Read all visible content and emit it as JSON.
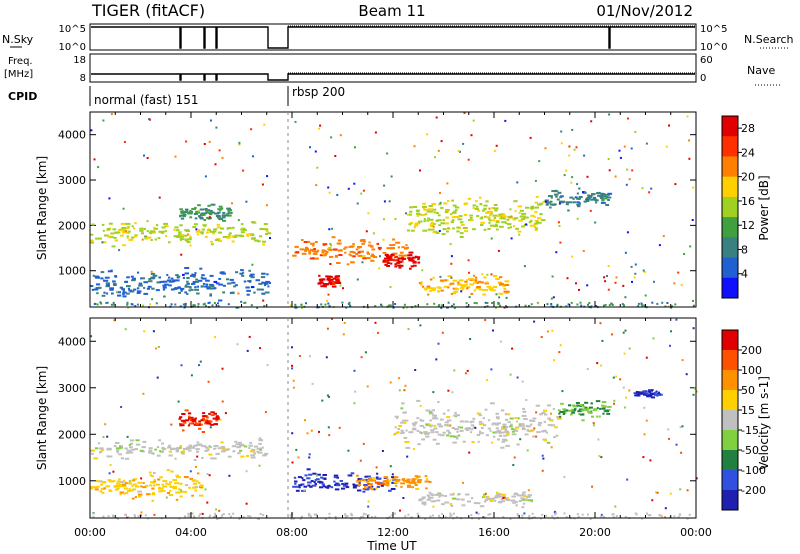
{
  "header": {
    "station": "TIGER (fitACF)",
    "beam": "Beam 11",
    "date": "01/Nov/2012"
  },
  "left_labels": {
    "nsky": "N.Sky",
    "freq_line1": "Freq.",
    "freq_line2": "[MHz]",
    "cpid": "CPID"
  },
  "right_labels": {
    "nsearch": "N.Search",
    "nave": "Nave"
  },
  "nsky_ticks": [
    "10^5",
    "10^0"
  ],
  "nsearch_ticks": [
    "10^5",
    "10^0"
  ],
  "freq_ticks": [
    "18",
    "8"
  ],
  "nave_ticks": [
    "60",
    "0"
  ],
  "cpid_modes": [
    "normal (fast) 151",
    "rbsp 200"
  ],
  "colors": {
    "power": [
      "#1010ff",
      "#2060d0",
      "#3a8080",
      "#40a040",
      "#a0d020",
      "#ffd000",
      "#ff8000",
      "#ff3000",
      "#e00000"
    ],
    "velocity": [
      "#2020b0",
      "#3050e0",
      "#208040",
      "#80d040",
      "#c0c0c0",
      "#ffd000",
      "#ff9000",
      "#ff5000",
      "#e00000"
    ]
  },
  "chart_data": [
    {
      "type": "heatmap",
      "name": "power",
      "ylabel": "Slant Range [km]",
      "yticks": [
        1000,
        2000,
        3000,
        4000
      ],
      "ylim": [
        200,
        4500
      ],
      "xlim": [
        0,
        24
      ],
      "colorbar": {
        "label": "Power [dB]",
        "ticks": [
          "4",
          "8",
          "12",
          "16",
          "20",
          "24",
          "28"
        ],
        "range": [
          0,
          30
        ]
      },
      "features": [
        {
          "t0": 0.0,
          "t1": 7.0,
          "r0": 1500,
          "r1": 2200,
          "level": 16
        },
        {
          "t0": 0.0,
          "t1": 7.0,
          "r0": 300,
          "r1": 1200,
          "level": 6
        },
        {
          "t0": 3.5,
          "t1": 5.5,
          "r0": 2000,
          "r1": 2600,
          "level": 10
        },
        {
          "t0": 8.0,
          "t1": 12.5,
          "r0": 1100,
          "r1": 1800,
          "level": 22
        },
        {
          "t0": 9.0,
          "t1": 9.8,
          "r0": 600,
          "r1": 1000,
          "level": 28
        },
        {
          "t0": 11.5,
          "t1": 13.0,
          "r0": 1000,
          "r1": 1500,
          "level": 28
        },
        {
          "t0": 12.5,
          "t1": 18.0,
          "r0": 1600,
          "r1": 2800,
          "level": 16
        },
        {
          "t0": 13.0,
          "t1": 16.5,
          "r0": 400,
          "r1": 1000,
          "level": 20
        },
        {
          "t0": 18.0,
          "t1": 20.5,
          "r0": 2300,
          "r1": 2900,
          "level": 8
        }
      ]
    },
    {
      "type": "heatmap",
      "name": "velocity",
      "ylabel": "Slant Range [km]",
      "yticks": [
        1000,
        2000,
        3000,
        4000
      ],
      "ylim": [
        200,
        4500
      ],
      "xlim": [
        0,
        24
      ],
      "colorbar": {
        "label": "Velocity [m s-1]",
        "ticks": [
          "200",
          "100",
          "50",
          "15",
          "-15",
          "-50",
          "-100",
          "-200"
        ],
        "range": [
          -250,
          250
        ]
      },
      "features": [
        {
          "t0": 0.0,
          "t1": 7.0,
          "r0": 1400,
          "r1": 2000,
          "level": 0
        },
        {
          "t0": 0.0,
          "t1": 4.5,
          "r0": 500,
          "r1": 1300,
          "level": -60
        },
        {
          "t0": 3.5,
          "t1": 5.0,
          "r0": 2000,
          "r1": 2600,
          "level": -200
        },
        {
          "t0": 8.0,
          "t1": 12.0,
          "r0": 700,
          "r1": 1300,
          "level": 200
        },
        {
          "t0": 10.5,
          "t1": 13.5,
          "r0": 800,
          "r1": 1200,
          "level": -110
        },
        {
          "t0": 12.0,
          "t1": 18.5,
          "r0": 1600,
          "r1": 2800,
          "level": 0
        },
        {
          "t0": 13.0,
          "t1": 17.5,
          "r0": 400,
          "r1": 900,
          "level": 0
        },
        {
          "t0": 18.5,
          "t1": 20.5,
          "r0": 2300,
          "r1": 2800,
          "level": 80
        },
        {
          "t0": 21.5,
          "t1": 22.5,
          "r0": 2800,
          "r1": 3000,
          "level": 200
        }
      ]
    }
  ],
  "x_axis": {
    "label": "Time UT",
    "ticks": [
      "00:00",
      "04:00",
      "08:00",
      "12:00",
      "16:00",
      "20:00",
      "00:00"
    ]
  }
}
